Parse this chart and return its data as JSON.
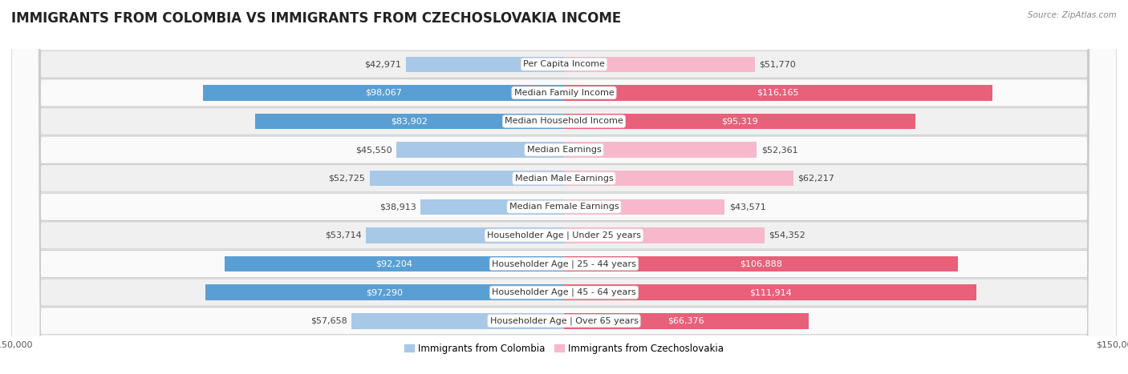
{
  "title": "IMMIGRANTS FROM COLOMBIA VS IMMIGRANTS FROM CZECHOSLOVAKIA INCOME",
  "source": "Source: ZipAtlas.com",
  "categories": [
    "Per Capita Income",
    "Median Family Income",
    "Median Household Income",
    "Median Earnings",
    "Median Male Earnings",
    "Median Female Earnings",
    "Householder Age | Under 25 years",
    "Householder Age | 25 - 44 years",
    "Householder Age | 45 - 64 years",
    "Householder Age | Over 65 years"
  ],
  "colombia_values": [
    42971,
    98067,
    83902,
    45550,
    52725,
    38913,
    53714,
    92204,
    97290,
    57658
  ],
  "czechoslovakia_values": [
    51770,
    116165,
    95319,
    52361,
    62217,
    43571,
    54352,
    106888,
    111914,
    66376
  ],
  "max_value": 150000,
  "colombia_color_light": "#a8c8e8",
  "colombia_color_dark": "#5a9fd4",
  "czechoslovakia_color_light": "#f7b8cc",
  "czechoslovakia_color_dark": "#e8607a",
  "colombia_inside_threshold": 65000,
  "czechoslovakia_inside_threshold": 65000,
  "legend_colombia": "Immigrants from Colombia",
  "legend_czechoslovakia": "Immigrants from Czechoslovakia",
  "background_color": "#ffffff",
  "row_color_even": "#f0f0f0",
  "row_color_odd": "#fafafa",
  "title_fontsize": 12,
  "label_fontsize": 8,
  "category_fontsize": 8,
  "axis_label_fontsize": 8,
  "legend_fontsize": 8.5
}
